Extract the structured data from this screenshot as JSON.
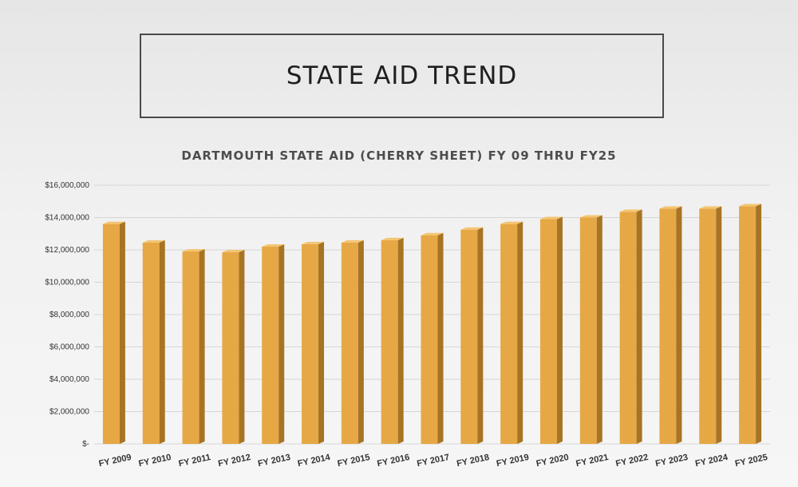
{
  "slide": {
    "title": "STATE AID TREND"
  },
  "chart_data": {
    "type": "bar",
    "title": "DARTMOUTH STATE AID (CHERRY SHEET) FY 09 THRU FY25",
    "xlabel": "",
    "ylabel": "",
    "categories": [
      "FY 2009",
      "FY 2010",
      "FY 2011",
      "FY 2012",
      "FY 2013",
      "FY 2014",
      "FY 2015",
      "FY 2016",
      "FY 2017",
      "FY 2018",
      "FY 2019",
      "FY 2020",
      "FY 2021",
      "FY 2022",
      "FY 2023",
      "FY 2024",
      "FY 2025"
    ],
    "values": [
      13600000,
      12450000,
      11900000,
      11850000,
      12200000,
      12350000,
      12450000,
      12600000,
      12900000,
      13250000,
      13600000,
      13900000,
      14000000,
      14350000,
      14550000,
      14550000,
      14700000
    ],
    "ylim": [
      0,
      16000000
    ],
    "ytick_values": [
      0,
      2000000,
      4000000,
      6000000,
      8000000,
      10000000,
      12000000,
      14000000,
      16000000
    ],
    "ytick_labels": [
      "$-",
      "$2,000,000",
      "$4,000,000",
      "$6,000,000",
      "$8,000,000",
      "$10,000,000",
      "$12,000,000",
      "$14,000,000",
      "$16,000,000"
    ],
    "grid": true,
    "bar_color": "#e6a845",
    "bar_side_color": "#a77424",
    "bar_top_color": "#f3c572"
  }
}
